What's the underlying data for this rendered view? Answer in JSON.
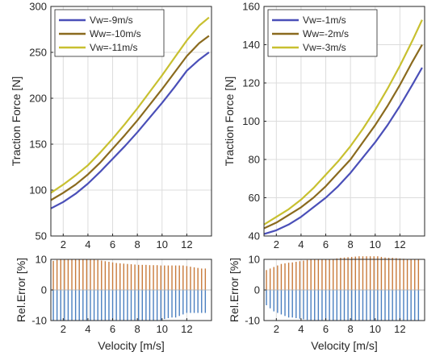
{
  "chart_data": [
    {
      "type": "line",
      "ylabel": "Traction Force [N]",
      "xlim": [
        1,
        14
      ],
      "ylim": [
        50,
        300
      ],
      "xticks": [
        2,
        4,
        6,
        8,
        10,
        12
      ],
      "yticks": [
        50,
        100,
        150,
        200,
        250,
        300
      ],
      "grid": true,
      "legend_position": "top-left",
      "x": [
        1,
        2,
        3,
        4,
        5,
        6,
        7,
        8,
        9,
        10,
        11,
        12,
        13,
        13.8
      ],
      "series": [
        {
          "name": "Vw=-9m/s",
          "color": "#4a4fb8",
          "values": [
            80,
            87,
            96,
            107,
            120,
            134,
            148,
            163,
            179,
            195,
            212,
            230,
            242,
            250
          ]
        },
        {
          "name": "Ww=-10m/s",
          "color": "#8a6a1e",
          "values": [
            89,
            97,
            106,
            117,
            130,
            145,
            160,
            176,
            193,
            210,
            228,
            246,
            260,
            268
          ]
        },
        {
          "name": "Vw=-11m/s",
          "color": "#c8c030",
          "values": [
            97,
            106,
            116,
            127,
            141,
            156,
            172,
            189,
            207,
            225,
            244,
            263,
            279,
            288
          ]
        }
      ]
    },
    {
      "type": "line",
      "ylabel": "Traction Force [N]",
      "xlim": [
        1,
        14
      ],
      "ylim": [
        40,
        160
      ],
      "xticks": [
        2,
        4,
        6,
        8,
        10,
        12
      ],
      "yticks": [
        40,
        60,
        80,
        100,
        120,
        140,
        160
      ],
      "grid": true,
      "legend_position": "top-left",
      "x": [
        1,
        2,
        3,
        4,
        5,
        6,
        7,
        8,
        9,
        10,
        11,
        12,
        13,
        13.8
      ],
      "series": [
        {
          "name": "Vw=-1m/s",
          "color": "#4a4fb8",
          "values": [
            41,
            43,
            46,
            50,
            55,
            60,
            66,
            73,
            81,
            89,
            98,
            108,
            119,
            128
          ]
        },
        {
          "name": "Ww=-2m/s",
          "color": "#8a6a1e",
          "values": [
            44,
            47,
            51,
            55,
            60,
            66,
            73,
            80,
            89,
            98,
            108,
            119,
            131,
            140
          ]
        },
        {
          "name": "Vw=-3m/s",
          "color": "#c8c030",
          "values": [
            46,
            50,
            54,
            59,
            65,
            72,
            79,
            87,
            96,
            106,
            117,
            129,
            142,
            153
          ]
        }
      ]
    },
    {
      "type": "bar",
      "xlabel": "Velocity [m/s]",
      "ylabel": "Rel.Error [%]",
      "xlim": [
        1,
        14
      ],
      "ylim": [
        -10,
        10
      ],
      "xticks": [
        2,
        4,
        6,
        8,
        10,
        12
      ],
      "yticks": [
        -10,
        0,
        10
      ],
      "grid": true,
      "x": [
        1.2,
        1.5,
        1.8,
        2.1,
        2.4,
        2.7,
        3.0,
        3.3,
        3.6,
        3.9,
        4.2,
        4.5,
        4.8,
        5.1,
        5.4,
        5.7,
        6.0,
        6.3,
        6.6,
        6.9,
        7.2,
        7.5,
        7.8,
        8.1,
        8.4,
        8.7,
        9.0,
        9.3,
        9.6,
        9.9,
        10.2,
        10.5,
        10.8,
        11.1,
        11.4,
        11.7,
        12.0,
        12.3,
        12.6,
        12.9,
        13.2,
        13.5
      ],
      "series": [
        {
          "name": "",
          "color": "#c87a3a",
          "values": [
            9.5,
            9.8,
            10,
            10,
            10,
            10,
            10,
            10,
            10,
            10,
            10,
            10,
            9.8,
            9.6,
            9.4,
            9.2,
            9,
            8.8,
            8.7,
            8.6,
            8.5,
            8.4,
            8.3,
            8.2,
            8.2,
            8.2,
            8.1,
            8.1,
            8.1,
            8,
            8,
            8,
            8,
            8,
            8,
            8,
            7.8,
            7.6,
            7.4,
            7.2,
            7,
            7
          ]
        },
        {
          "name": "",
          "color": "#4a7fc0",
          "values": [
            -10,
            -10,
            -10,
            -10,
            -10,
            -10,
            -10,
            -10,
            -10,
            -10,
            -10,
            -10,
            -10,
            -10,
            -10,
            -10,
            -10,
            -10,
            -10,
            -10,
            -10,
            -10,
            -10,
            -10,
            -10,
            -10,
            -10,
            -10,
            -10,
            -10,
            -9.5,
            -9.2,
            -9,
            -9,
            -8.5,
            -8,
            -7.5,
            -7.5,
            -7.5,
            -7.5,
            -7.5,
            -7.5
          ]
        }
      ]
    },
    {
      "type": "bar",
      "xlabel": "Velocity [m/s]",
      "ylabel": "Rel.Error [%]",
      "xlim": [
        1,
        14
      ],
      "ylim": [
        -10,
        10
      ],
      "xticks": [
        2,
        4,
        6,
        8,
        10,
        12
      ],
      "yticks": [
        -10,
        0,
        10
      ],
      "grid": true,
      "x": [
        1.2,
        1.5,
        1.8,
        2.1,
        2.4,
        2.7,
        3.0,
        3.3,
        3.6,
        3.9,
        4.2,
        4.5,
        4.8,
        5.1,
        5.4,
        5.7,
        6.0,
        6.3,
        6.6,
        6.9,
        7.2,
        7.5,
        7.8,
        8.1,
        8.4,
        8.7,
        9.0,
        9.3,
        9.6,
        9.9,
        10.2,
        10.5,
        10.8,
        11.1,
        11.4,
        11.7,
        12.0,
        12.3,
        12.6,
        12.9,
        13.2,
        13.5
      ],
      "series": [
        {
          "name": "",
          "color": "#c87a3a",
          "values": [
            6.5,
            7,
            7.5,
            8,
            8.5,
            8.7,
            8.9,
            9,
            9.2,
            9.4,
            9.6,
            9.8,
            10,
            10,
            10,
            10,
            10,
            10,
            10,
            10.3,
            10.5,
            10.6,
            10.7,
            10.8,
            10.9,
            11,
            11,
            11,
            11,
            11,
            11,
            10.8,
            10.6,
            10.5,
            10.5,
            10.4,
            10.3,
            10.2,
            10,
            10,
            10,
            10
          ]
        },
        {
          "name": "",
          "color": "#4a7fc0",
          "values": [
            -5,
            -6,
            -7,
            -7.5,
            -8,
            -8.5,
            -9,
            -9,
            -9.2,
            -9.4,
            -9.6,
            -9.8,
            -10,
            -10,
            -10,
            -10,
            -10,
            -10,
            -10,
            -10,
            -10,
            -10,
            -10,
            -10,
            -10,
            -10,
            -10,
            -10,
            -10,
            -10,
            -10,
            -10,
            -10,
            -10,
            -10,
            -10,
            -10,
            -10,
            -10,
            -10,
            -10,
            -10
          ]
        }
      ]
    }
  ]
}
